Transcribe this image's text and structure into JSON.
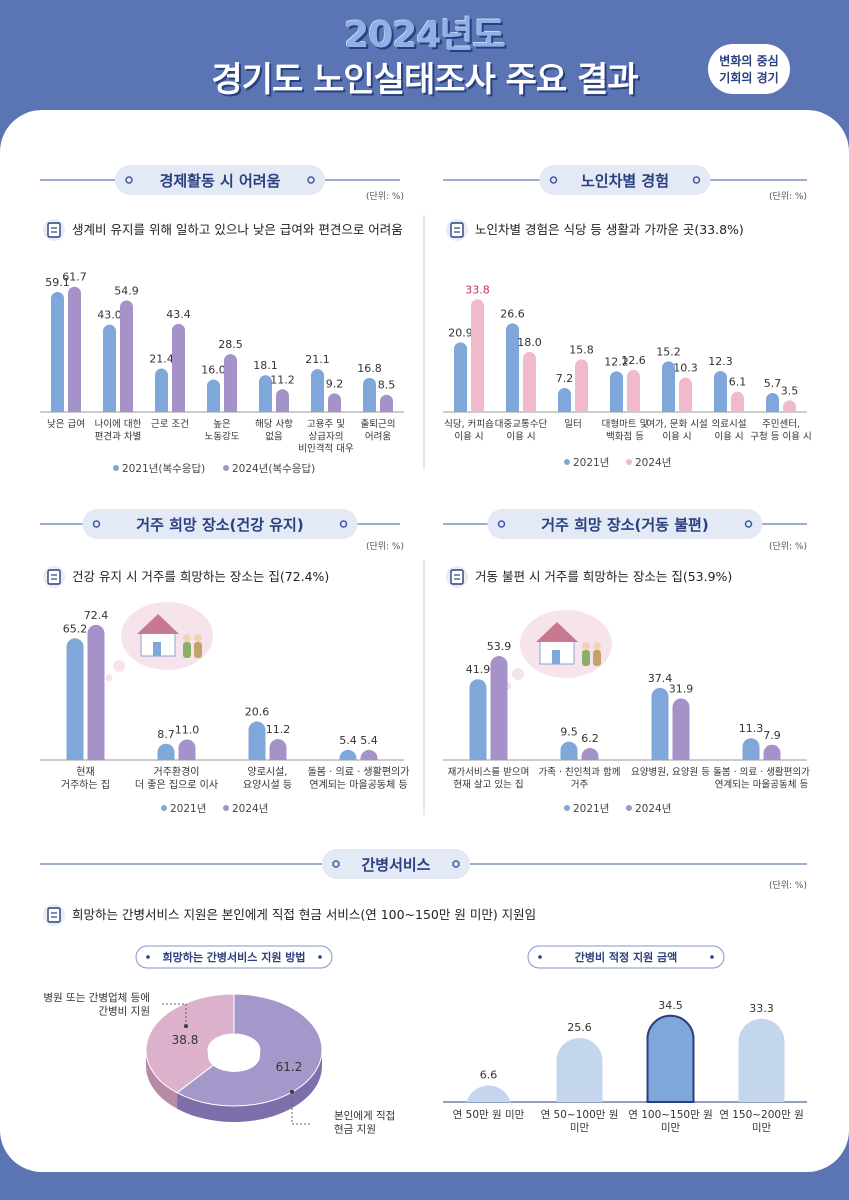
{
  "header": {
    "year": "2024년도",
    "title": "경기도 노인실태조사 주요 결과",
    "badge_line1": "변화의 중심",
    "badge_line2": "기회의 경기"
  },
  "colors": {
    "c2021": "#7fa7d9",
    "c2024": "#a592c8",
    "pink": "#f0b9cc",
    "navy": "#2a3f7e",
    "lightBlue": "#c3d6ee"
  },
  "unit": "(단위: %)",
  "chart_data": [
    {
      "id": "econ",
      "type": "bar",
      "section_title": "경제활동 시 어려움",
      "headline": "생계비 유지를 위해 일하고 있으나 낮은 급여와 편견으로 어려움",
      "categories": [
        "낮은 급여",
        "나이에 대한\n편견과 차별",
        "근로 조건",
        "높은\n노동강도",
        "해당 사항\n없음",
        "고용주 및\n상급자의\n비인격적 대우",
        "출퇴근의\n어려움"
      ],
      "series": [
        {
          "name": "2021년(복수응답)",
          "values": [
            59.1,
            43.0,
            21.4,
            16.0,
            18.1,
            21.1,
            16.8
          ]
        },
        {
          "name": "2024년(복수응답)",
          "values": [
            61.7,
            54.9,
            43.4,
            28.5,
            11.2,
            9.2,
            8.5
          ]
        }
      ],
      "ylim": [
        0,
        65
      ]
    },
    {
      "id": "discrim",
      "type": "bar",
      "section_title": "노인차별 경험",
      "headline": "노인차별 경험은 식당 등 생활과 가까운 곳(33.8%)",
      "categories": [
        "식당, 커피숍\n이용 시",
        "대중교통수단\n이용 시",
        "일터",
        "대형마트 및\n백화점 등",
        "여가, 문화 시설\n이용 시",
        "의료시설\n이용 시",
        "주민센터,\n구청 등 이용 시"
      ],
      "series": [
        {
          "name": "2021년",
          "values": [
            20.9,
            26.6,
            7.2,
            12.2,
            15.2,
            12.3,
            5.7
          ]
        },
        {
          "name": "2024년",
          "values": [
            33.8,
            18.0,
            15.8,
            12.6,
            10.3,
            6.1,
            3.5
          ]
        }
      ],
      "ylim": [
        0,
        36
      ]
    },
    {
      "id": "resHealthy",
      "type": "bar",
      "section_title": "거주 희망 장소(건강 유지)",
      "headline": "건강 유지 시 거주를 희망하는 장소는 집(72.4%)",
      "categories": [
        "현재\n거주하는 집",
        "거주환경이\n더 좋은 집으로 이사",
        "양로시설,\n요양시설 등",
        "돌봄 · 의료 · 생활편의가\n연계되는 마을공동체 등"
      ],
      "series": [
        {
          "name": "2021년",
          "values": [
            65.2,
            8.7,
            20.6,
            5.4
          ]
        },
        {
          "name": "2024년",
          "values": [
            72.4,
            11.0,
            11.2,
            5.4
          ]
        }
      ],
      "ylim": [
        0,
        75
      ]
    },
    {
      "id": "resImpaired",
      "type": "bar",
      "section_title": "거주 희망 장소(거동 불편)",
      "headline": "거동 불편 시 거주를 희망하는 장소는 집(53.9%)",
      "categories": [
        "재가서비스를 받으며\n현재 살고 있는 집",
        "가족 · 친인척과 함께\n거주",
        "요양병원, 요양원 등",
        "돌봄 · 의료 · 생활편의가\n연계되는 마을공동체 등"
      ],
      "series": [
        {
          "name": "2021년",
          "values": [
            41.9,
            9.5,
            37.4,
            11.3
          ]
        },
        {
          "name": "2024년",
          "values": [
            53.9,
            6.2,
            31.9,
            7.9
          ]
        }
      ],
      "ylim": [
        0,
        56
      ]
    },
    {
      "id": "careMethod",
      "type": "pie",
      "title": "희망하는 간병서비스 지원 방법",
      "labels": [
        "본인에게 직접\n현금 지원",
        "병원 또는 간병업체 등에\n간병비 지원"
      ],
      "values": [
        61.2,
        38.8
      ]
    },
    {
      "id": "careAmount",
      "type": "bar",
      "title": "간병비 적정 지원 금액",
      "categories": [
        "연 50만 원 미만",
        "연 50~100만 원\n미만",
        "연 100~150만 원\n미만",
        "연 150~200만 원\n미만"
      ],
      "values": [
        6.6,
        25.6,
        34.5,
        33.3
      ],
      "highlight_index": 2,
      "ylim": [
        0,
        36
      ]
    }
  ],
  "care": {
    "section_title": "간병서비스",
    "headline": "희망하는 간병서비스 지원은 본인에게 직접 현금 서비스(연 100~150만 원 미만) 지원임"
  }
}
